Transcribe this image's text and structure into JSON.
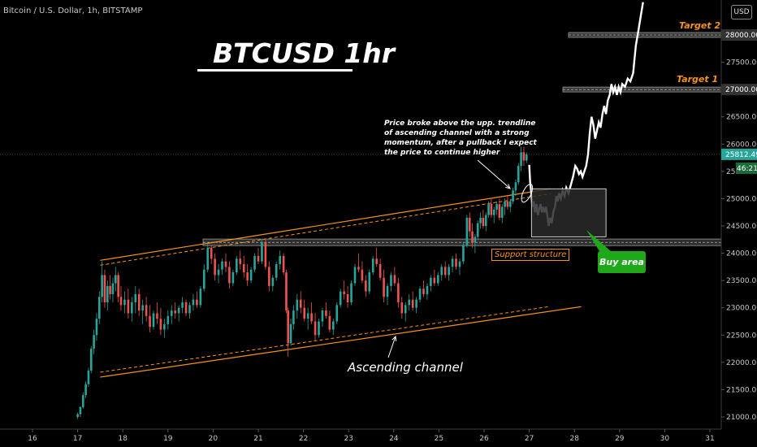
{
  "header": {
    "symbol_line": "Bitcoin / U.S. Dollar, 1h, BITSTAMP",
    "currency_button": "USD"
  },
  "overlay": {
    "title": "BTCUSD 1hr",
    "target1_label": "Target 1",
    "target2_label": "Target 2",
    "annotation": "Price broke above the upp. trendline of ascending channel with a strong momentum, after a pullback I expect the price to continue higher",
    "support_label": "Support structure",
    "buy_label": "Buy area",
    "channel_label": "Ascending channel"
  },
  "colors": {
    "up": "#26a69a",
    "down": "#ef5350",
    "channel": "#f7931a",
    "current_price_tag": "#26a69a",
    "projection": "#ffffff",
    "buy_area": "#1fa81a"
  },
  "chart_data": {
    "type": "candlestick",
    "x_ticks": [
      "16",
      "17",
      "18",
      "19",
      "20",
      "21",
      "22",
      "23",
      "24",
      "25",
      "26",
      "27",
      "28",
      "29",
      "30",
      "31"
    ],
    "y_ticks": [
      21000,
      21500,
      22000,
      22500,
      23000,
      23500,
      24000,
      24500,
      25000,
      25500,
      26000,
      26500,
      27000,
      27500,
      28000
    ],
    "ylim": [
      20950,
      28700
    ],
    "xlim": [
      15.95,
      31.1
    ],
    "current_price": 25812.49,
    "current_price_label": "25812.49",
    "countdown_label": "46:21",
    "levels": {
      "target1": 27000,
      "target1_label": "27000.00",
      "target2": 28000,
      "target2_label": "28000.00",
      "support_top": 24260,
      "support_bottom": 24140
    },
    "channel": {
      "upper_start": [
        17.5,
        23870
      ],
      "upper_end": [
        26.75,
        25090
      ],
      "lower_start": [
        17.5,
        21730
      ],
      "lower_end": [
        28.15,
        23020
      ]
    },
    "buy_area_box": {
      "x0": 27.05,
      "x1": 28.7,
      "y0": 24300,
      "y1": 25180
    },
    "candles": [
      [
        17.0,
        21000,
        21080,
        20960,
        21050
      ],
      [
        17.06,
        21050,
        21200,
        21000,
        21180
      ],
      [
        17.12,
        21180,
        21450,
        21150,
        21400
      ],
      [
        17.18,
        21400,
        21650,
        21350,
        21600
      ],
      [
        17.24,
        21600,
        21900,
        21550,
        21850
      ],
      [
        17.3,
        21850,
        22300,
        21800,
        22250
      ],
      [
        17.36,
        22250,
        22600,
        22150,
        22500
      ],
      [
        17.42,
        22500,
        22900,
        22400,
        22800
      ],
      [
        17.48,
        22800,
        23300,
        22700,
        23200
      ],
      [
        17.54,
        23200,
        23850,
        23100,
        23600
      ],
      [
        17.6,
        23600,
        23700,
        23000,
        23100
      ],
      [
        17.66,
        23100,
        23500,
        22950,
        23400
      ],
      [
        17.72,
        23400,
        23600,
        23150,
        23250
      ],
      [
        17.78,
        23250,
        23550,
        23100,
        23450
      ],
      [
        17.84,
        23450,
        23750,
        23300,
        23600
      ],
      [
        17.9,
        23600,
        23650,
        23100,
        23200
      ],
      [
        17.96,
        23200,
        23400,
        22950,
        23050
      ],
      [
        18.04,
        23050,
        23300,
        22900,
        23150
      ],
      [
        18.12,
        23150,
        23350,
        22800,
        22900
      ],
      [
        18.2,
        22900,
        23200,
        22750,
        23100
      ],
      [
        18.28,
        23100,
        23400,
        22900,
        23250
      ],
      [
        18.36,
        23250,
        23350,
        22850,
        22950
      ],
      [
        18.44,
        22950,
        23150,
        22700,
        23050
      ],
      [
        18.52,
        23050,
        23200,
        22750,
        22850
      ],
      [
        18.6,
        22850,
        23050,
        22550,
        22650
      ],
      [
        18.68,
        22650,
        22950,
        22600,
        22900
      ],
      [
        18.76,
        22900,
        23100,
        22700,
        22800
      ],
      [
        18.84,
        22800,
        23000,
        22500,
        22600
      ],
      [
        18.92,
        22600,
        22800,
        22450,
        22700
      ],
      [
        19.0,
        22700,
        22950,
        22600,
        22850
      ],
      [
        19.08,
        22850,
        23050,
        22700,
        22950
      ],
      [
        19.16,
        22950,
        23100,
        22800,
        22900
      ],
      [
        19.24,
        22900,
        23050,
        22750,
        23000
      ],
      [
        19.32,
        23000,
        23200,
        22900,
        23100
      ],
      [
        19.4,
        23100,
        23150,
        22850,
        22900
      ],
      [
        19.48,
        22900,
        23100,
        22800,
        23050
      ],
      [
        19.56,
        23050,
        23250,
        22950,
        23150
      ],
      [
        19.64,
        23150,
        23300,
        23000,
        23050
      ],
      [
        19.72,
        23050,
        23400,
        23000,
        23350
      ],
      [
        19.8,
        23350,
        23800,
        23300,
        23700
      ],
      [
        19.88,
        23700,
        24200,
        23650,
        24100
      ],
      [
        19.96,
        24100,
        24150,
        23800,
        23900
      ],
      [
        20.04,
        23900,
        24000,
        23500,
        23600
      ],
      [
        20.12,
        23600,
        23800,
        23450,
        23700
      ],
      [
        20.2,
        23700,
        23900,
        23600,
        23850
      ],
      [
        20.28,
        23850,
        24000,
        23650,
        23750
      ],
      [
        20.36,
        23750,
        23850,
        23350,
        23450
      ],
      [
        20.44,
        23450,
        23700,
        23400,
        23650
      ],
      [
        20.52,
        23650,
        23950,
        23600,
        23900
      ],
      [
        20.6,
        23900,
        24050,
        23700,
        23800
      ],
      [
        20.68,
        23800,
        23950,
        23550,
        23650
      ],
      [
        20.76,
        23650,
        23800,
        23400,
        23500
      ],
      [
        20.84,
        23500,
        23750,
        23450,
        23700
      ],
      [
        20.92,
        23700,
        24000,
        23650,
        23950
      ],
      [
        21.0,
        23950,
        24100,
        23800,
        23850
      ],
      [
        21.08,
        23850,
        24250,
        23800,
        24200
      ],
      [
        21.16,
        24200,
        24250,
        23700,
        23750
      ],
      [
        21.24,
        23750,
        23850,
        23300,
        23400
      ],
      [
        21.32,
        23400,
        23600,
        23300,
        23550
      ],
      [
        21.4,
        23550,
        23850,
        23500,
        23800
      ],
      [
        21.48,
        23800,
        24050,
        23700,
        23950
      ],
      [
        21.56,
        23950,
        24000,
        23600,
        23650
      ],
      [
        21.62,
        23650,
        23700,
        22900,
        22950
      ],
      [
        21.66,
        22950,
        23000,
        22100,
        22350
      ],
      [
        21.72,
        22350,
        22800,
        22300,
        22700
      ],
      [
        21.78,
        22700,
        23050,
        22600,
        22950
      ],
      [
        21.86,
        22950,
        23250,
        22800,
        23150
      ],
      [
        21.94,
        23150,
        23300,
        22900,
        23000
      ],
      [
        22.02,
        23000,
        23150,
        22750,
        22800
      ],
      [
        22.1,
        22800,
        23000,
        22600,
        22900
      ],
      [
        22.18,
        22900,
        23100,
        22700,
        22750
      ],
      [
        22.26,
        22750,
        22900,
        22400,
        22500
      ],
      [
        22.34,
        22500,
        22800,
        22450,
        22750
      ],
      [
        22.42,
        22750,
        23000,
        22650,
        22950
      ],
      [
        22.5,
        22950,
        23100,
        22800,
        22850
      ],
      [
        22.58,
        22850,
        22950,
        22550,
        22600
      ],
      [
        22.66,
        22600,
        22800,
        22500,
        22750
      ],
      [
        22.74,
        22750,
        23100,
        22700,
        23050
      ],
      [
        22.82,
        23050,
        23350,
        23000,
        23300
      ],
      [
        22.9,
        23300,
        23500,
        23150,
        23250
      ],
      [
        22.98,
        23250,
        23400,
        23000,
        23100
      ],
      [
        23.06,
        23100,
        23500,
        23050,
        23450
      ],
      [
        23.14,
        23450,
        23800,
        23400,
        23750
      ],
      [
        23.22,
        23750,
        24000,
        23650,
        23700
      ],
      [
        23.3,
        23700,
        23850,
        23450,
        23500
      ],
      [
        23.38,
        23500,
        23600,
        23200,
        23300
      ],
      [
        23.46,
        23300,
        23700,
        23250,
        23650
      ],
      [
        23.54,
        23650,
        23950,
        23600,
        23900
      ],
      [
        23.62,
        23900,
        24100,
        23750,
        23800
      ],
      [
        23.7,
        23800,
        23900,
        23500,
        23550
      ],
      [
        23.78,
        23550,
        23700,
        23100,
        23200
      ],
      [
        23.86,
        23200,
        23450,
        23050,
        23400
      ],
      [
        23.94,
        23400,
        23650,
        23300,
        23600
      ],
      [
        24.02,
        23600,
        23750,
        23400,
        23450
      ],
      [
        24.1,
        23450,
        23550,
        23000,
        23100
      ],
      [
        24.18,
        23100,
        23200,
        22800,
        22900
      ],
      [
        24.26,
        22900,
        23100,
        22750,
        23050
      ],
      [
        24.34,
        23050,
        23250,
        22950,
        23150
      ],
      [
        24.42,
        23150,
        23300,
        22950,
        23000
      ],
      [
        24.5,
        23000,
        23200,
        22900,
        23150
      ],
      [
        24.58,
        23150,
        23400,
        23100,
        23350
      ],
      [
        24.66,
        23350,
        23500,
        23200,
        23250
      ],
      [
        24.74,
        23250,
        23450,
        23150,
        23400
      ],
      [
        24.82,
        23400,
        23600,
        23300,
        23550
      ],
      [
        24.9,
        23550,
        23700,
        23400,
        23450
      ],
      [
        24.98,
        23450,
        23650,
        23400,
        23600
      ],
      [
        25.06,
        23600,
        23800,
        23500,
        23750
      ],
      [
        25.14,
        23750,
        23850,
        23550,
        23600
      ],
      [
        25.22,
        23600,
        23800,
        23500,
        23750
      ],
      [
        25.3,
        23750,
        23950,
        23650,
        23900
      ],
      [
        25.38,
        23900,
        24000,
        23700,
        23750
      ],
      [
        25.46,
        23750,
        23900,
        23600,
        23850
      ],
      [
        25.54,
        23850,
        24200,
        23800,
        24150
      ],
      [
        25.62,
        24150,
        24700,
        24100,
        24650
      ],
      [
        25.68,
        24650,
        24750,
        24300,
        24400
      ],
      [
        25.74,
        24400,
        24550,
        24100,
        24200
      ],
      [
        25.8,
        24200,
        24350,
        24000,
        24300
      ],
      [
        25.86,
        24300,
        24600,
        24250,
        24550
      ],
      [
        25.92,
        24550,
        24750,
        24450,
        24650
      ],
      [
        25.98,
        24650,
        24800,
        24450,
        24500
      ],
      [
        26.04,
        24500,
        24750,
        24400,
        24700
      ],
      [
        26.1,
        24700,
        24950,
        24650,
        24900
      ],
      [
        26.16,
        24900,
        25000,
        24650,
        24700
      ],
      [
        26.22,
        24700,
        24850,
        24550,
        24800
      ],
      [
        26.28,
        24800,
        24950,
        24700,
        24900
      ],
      [
        26.34,
        24900,
        25000,
        24600,
        24650
      ],
      [
        26.4,
        24650,
        24900,
        24550,
        24850
      ],
      [
        26.46,
        24850,
        25000,
        24700,
        24950
      ],
      [
        26.52,
        24950,
        25050,
        24800,
        24850
      ],
      [
        26.58,
        24850,
        25000,
        24750,
        24950
      ],
      [
        26.64,
        24950,
        25200,
        24900,
        25150
      ],
      [
        26.7,
        25150,
        25350,
        25050,
        25300
      ],
      [
        26.76,
        25300,
        25650,
        25250,
        25600
      ],
      [
        26.82,
        25600,
        25950,
        25500,
        25850
      ],
      [
        26.88,
        25850,
        25950,
        25600,
        25700
      ],
      [
        26.94,
        25700,
        25850,
        25650,
        25812
      ]
    ],
    "projection": [
      [
        27.0,
        25620
      ],
      [
        27.02,
        25300
      ],
      [
        27.04,
        25150
      ],
      [
        27.07,
        24850
      ],
      [
        27.1,
        24950
      ],
      [
        27.13,
        24750
      ],
      [
        27.16,
        24900
      ],
      [
        27.19,
        24700
      ],
      [
        27.22,
        24800
      ],
      [
        27.25,
        24900
      ],
      [
        27.28,
        24750
      ],
      [
        27.31,
        24850
      ],
      [
        27.34,
        24750
      ],
      [
        27.37,
        24850
      ],
      [
        27.4,
        24700
      ],
      [
        27.43,
        24500
      ],
      [
        27.46,
        24650
      ],
      [
        27.5,
        24550
      ],
      [
        27.53,
        24750
      ],
      [
        27.57,
        24850
      ],
      [
        27.6,
        25050
      ],
      [
        27.63,
        24950
      ],
      [
        27.66,
        25100
      ],
      [
        27.7,
        25000
      ],
      [
        27.74,
        25150
      ],
      [
        27.78,
        25050
      ],
      [
        27.82,
        25200
      ],
      [
        27.87,
        25100
      ],
      [
        27.92,
        25250
      ],
      [
        27.97,
        25400
      ],
      [
        28.02,
        25600
      ],
      [
        28.06,
        25550
      ],
      [
        28.1,
        25450
      ],
      [
        28.14,
        25500
      ],
      [
        28.18,
        25400
      ],
      [
        28.22,
        25500
      ],
      [
        28.26,
        25600
      ],
      [
        28.3,
        25800
      ],
      [
        28.34,
        26200
      ],
      [
        28.38,
        26500
      ],
      [
        28.42,
        26350
      ],
      [
        28.46,
        26100
      ],
      [
        28.5,
        26250
      ],
      [
        28.54,
        26400
      ],
      [
        28.58,
        26300
      ],
      [
        28.62,
        26550
      ],
      [
        28.66,
        26700
      ],
      [
        28.7,
        26550
      ],
      [
        28.74,
        26800
      ],
      [
        28.78,
        26900
      ],
      [
        28.82,
        27100
      ],
      [
        28.86,
        26950
      ],
      [
        28.9,
        27050
      ],
      [
        28.94,
        26900
      ],
      [
        28.98,
        27050
      ],
      [
        29.02,
        26950
      ],
      [
        29.06,
        27100
      ],
      [
        29.12,
        27050
      ],
      [
        29.18,
        27200
      ],
      [
        29.24,
        27150
      ],
      [
        29.3,
        27300
      ],
      [
        29.36,
        27800
      ],
      [
        29.42,
        28100
      ],
      [
        29.48,
        28400
      ],
      [
        29.52,
        28600
      ]
    ]
  }
}
